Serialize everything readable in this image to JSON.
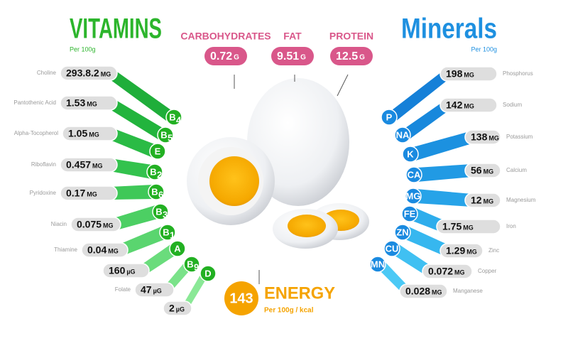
{
  "vitamins": {
    "title": "VITAMINS",
    "subtitle": "Per 100g",
    "rows": [
      {
        "name": "Choline",
        "value": "293.8.2",
        "unit": "MG",
        "badge": "B",
        "sub": "4"
      },
      {
        "name": "Pantothenic Acid",
        "value": 1.53,
        "unit": "MG",
        "badge": "B",
        "sub": "5"
      },
      {
        "name": "Alpha-Tocopherol",
        "value": 1.05,
        "unit": "MG",
        "badge": "E"
      },
      {
        "name": "Riboflavin",
        "value": 0.457,
        "unit": "MG",
        "badge": "B",
        "sub": "2"
      },
      {
        "name": "Pyridoxine",
        "value": 0.17,
        "unit": "MG",
        "badge": "B",
        "sub": "6"
      },
      {
        "name": "Niacin",
        "value": 0.075,
        "unit": "MG",
        "badge": "B",
        "sub": "3"
      },
      {
        "name": "Thiamine",
        "value": 0.04,
        "unit": "MG",
        "badge": "B",
        "sub": "1"
      },
      {
        "value": 160,
        "unit": "µG",
        "badge": "A"
      },
      {
        "name": "Folate",
        "value": 47,
        "unit": "µG",
        "badge": "B",
        "sub": "9"
      },
      {
        "value": 2,
        "unit": "µG",
        "badge": "D"
      }
    ]
  },
  "minerals": {
    "title": "Minerals",
    "subtitle": "Per 100g",
    "rows": [
      {
        "name": "Phosphorus",
        "value": 198,
        "unit": "MG",
        "badge": "P"
      },
      {
        "name": "Sodium",
        "value": 142,
        "unit": "MG",
        "badge": "NA"
      },
      {
        "name": "Potassium",
        "value": 138,
        "unit": "MG",
        "badge": "K"
      },
      {
        "name": "Calcium",
        "value": 56,
        "unit": "MG",
        "badge": "CA"
      },
      {
        "name": "Magnesium",
        "value": 12,
        "unit": "MG",
        "badge": "MG"
      },
      {
        "name": "Iron",
        "value": 1.75,
        "unit": "MG",
        "badge": "FE"
      },
      {
        "name": "Zinc",
        "value": 1.29,
        "unit": "MG",
        "badge": "ZN"
      },
      {
        "name": "Copper",
        "value": 0.072,
        "unit": "MG",
        "badge": "CU"
      },
      {
        "name": "Manganese",
        "value": 0.028,
        "unit": "MG",
        "badge": "MN"
      }
    ]
  },
  "macros": [
    {
      "name": "CARBOHYDRATES",
      "value": 0.72,
      "unit": "G"
    },
    {
      "name": "FAT",
      "value": 9.51,
      "unit": "G"
    },
    {
      "name": "PROTEIN",
      "value": 12.5,
      "unit": "G"
    }
  ],
  "energy": {
    "value": 143,
    "label": "ENERGY",
    "subtitle": "Per 100g / kcal"
  }
}
